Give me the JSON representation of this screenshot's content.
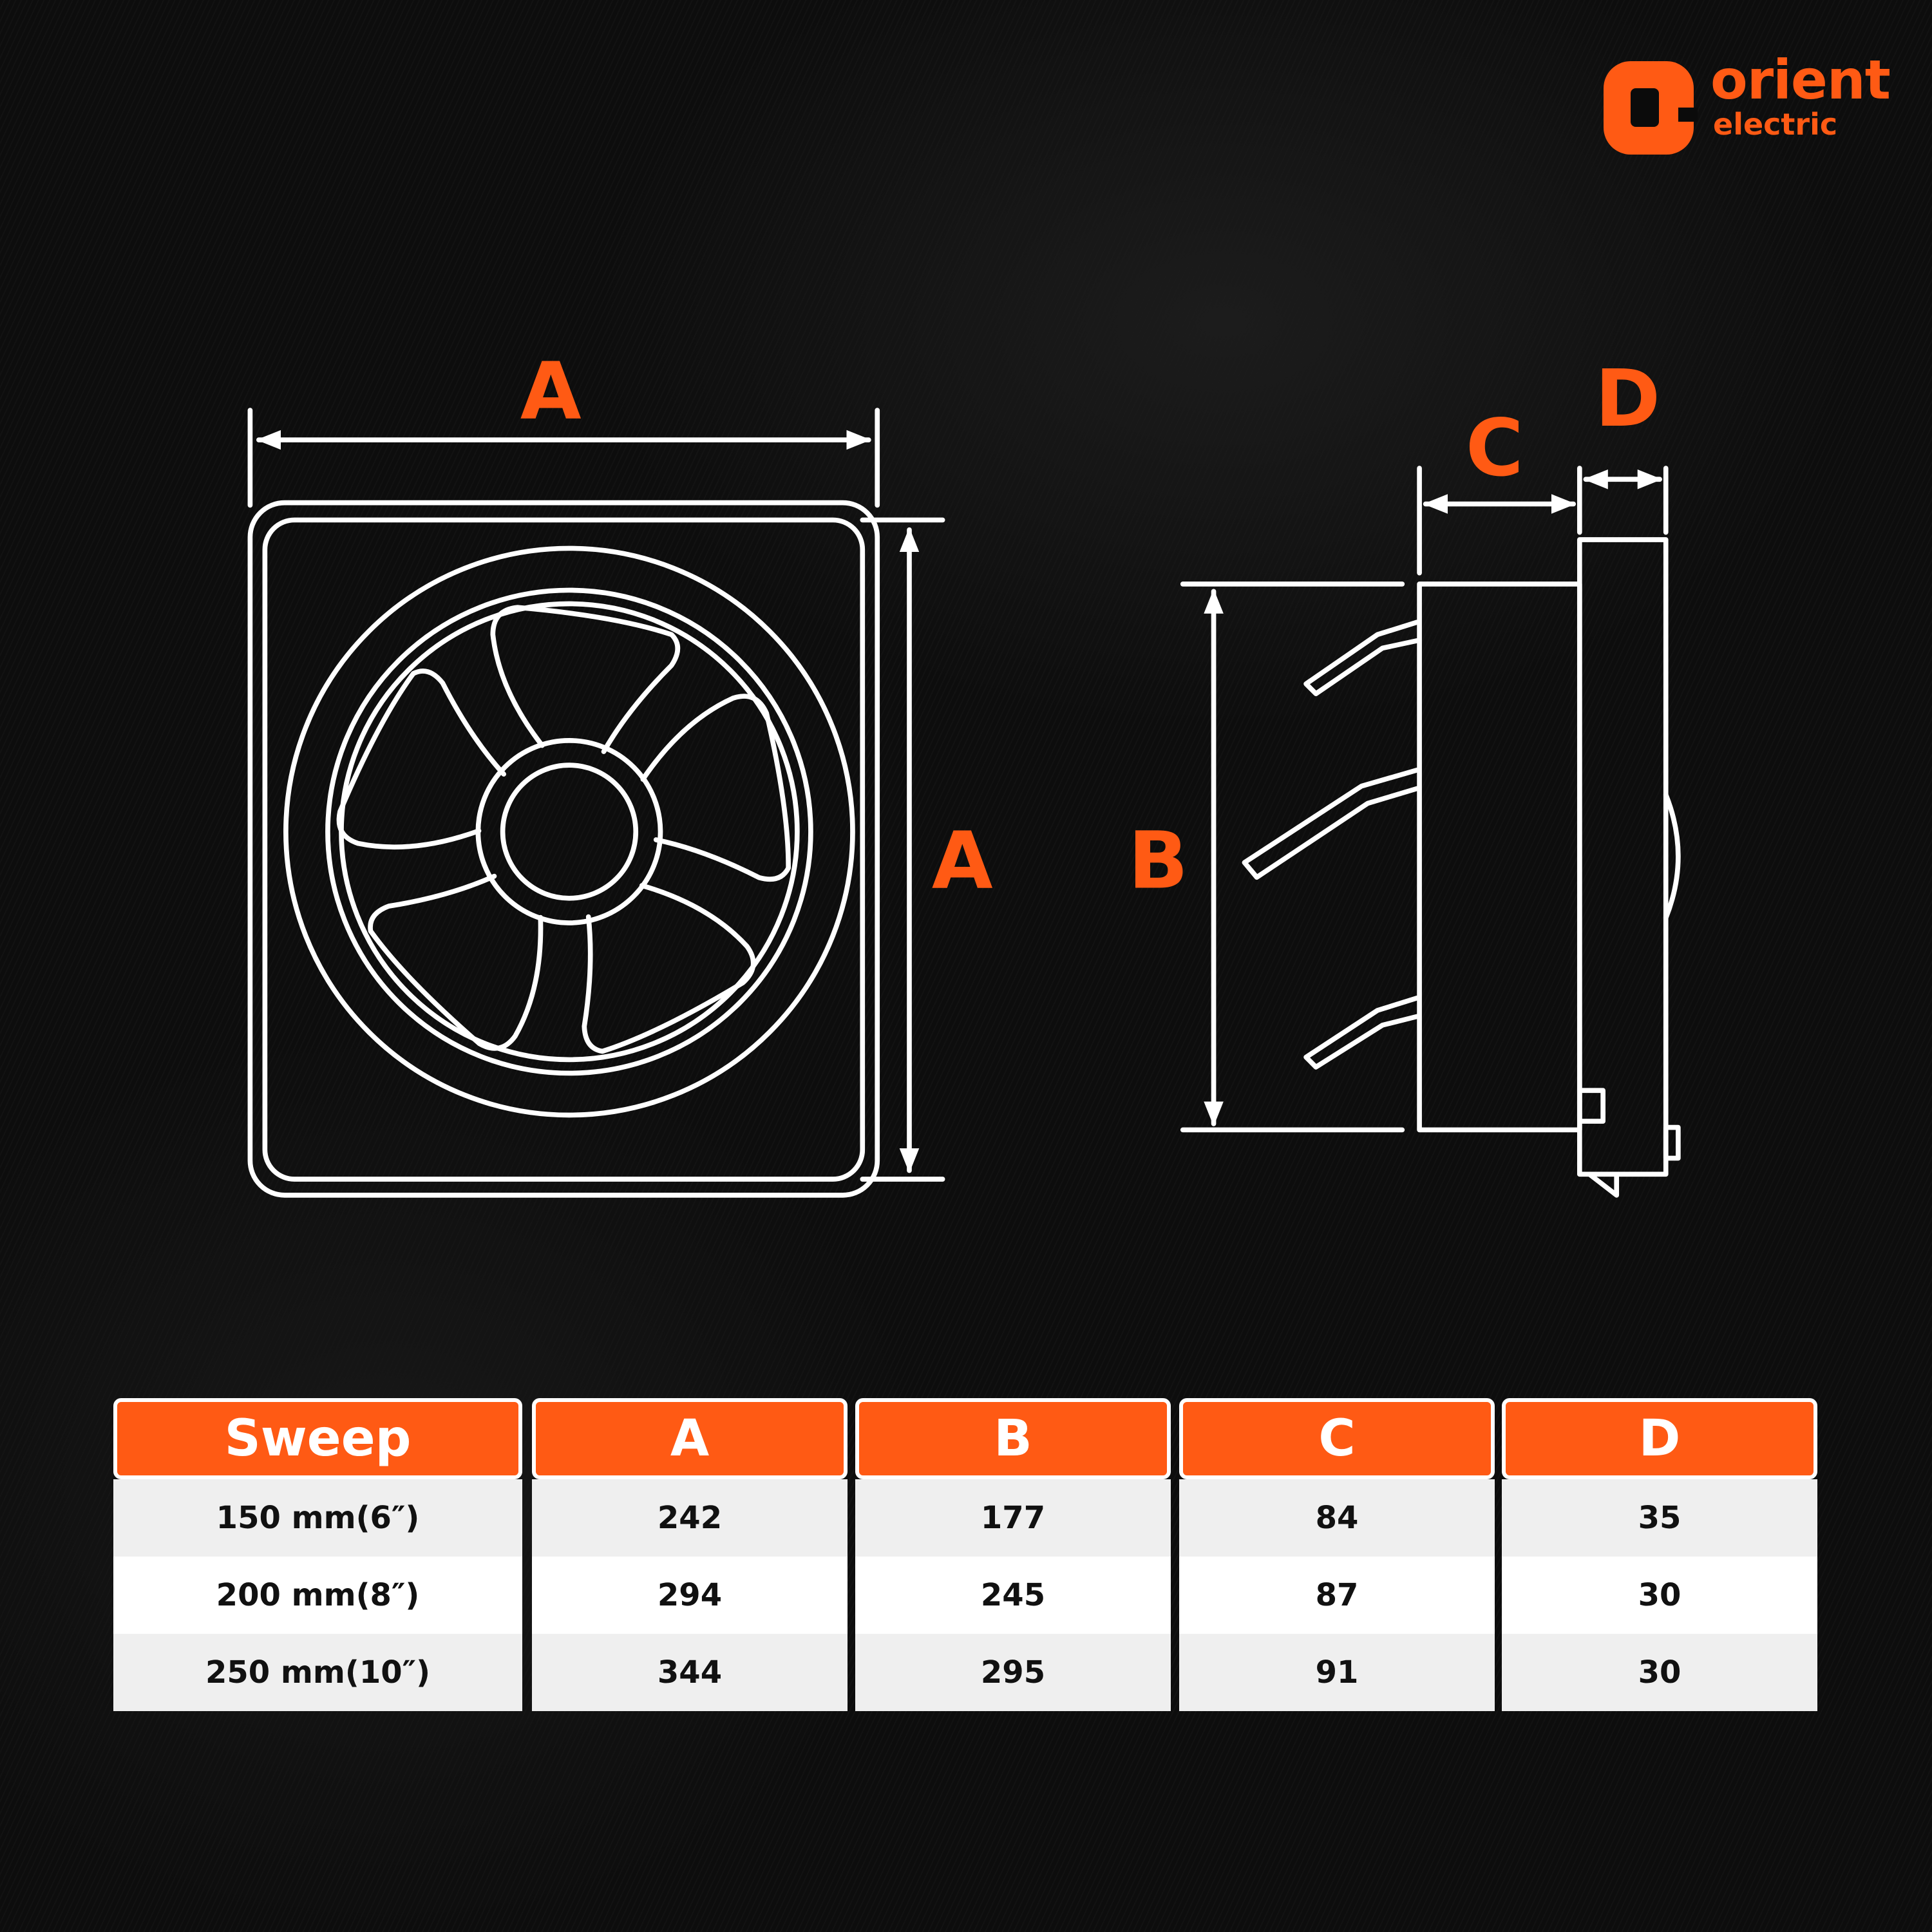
{
  "brand": {
    "name": "orient",
    "sub": "electric",
    "color": "#ff5a14"
  },
  "diagram": {
    "labels": {
      "front_width": "A",
      "front_height": "A",
      "side_height": "B",
      "side_depth": "C",
      "flange_depth": "D"
    },
    "line_color": "#ffffff",
    "accent": "#ff5a14"
  },
  "table": {
    "headers": [
      "Sweep",
      "A",
      "B",
      "C",
      "D"
    ],
    "rows": [
      [
        "150 mm(6″)",
        "242",
        "177",
        "84",
        "35"
      ],
      [
        "200 mm(8″)",
        "294",
        "245",
        "87",
        "30"
      ],
      [
        "250 mm(10″)",
        "344",
        "295",
        "91",
        "30"
      ]
    ]
  }
}
